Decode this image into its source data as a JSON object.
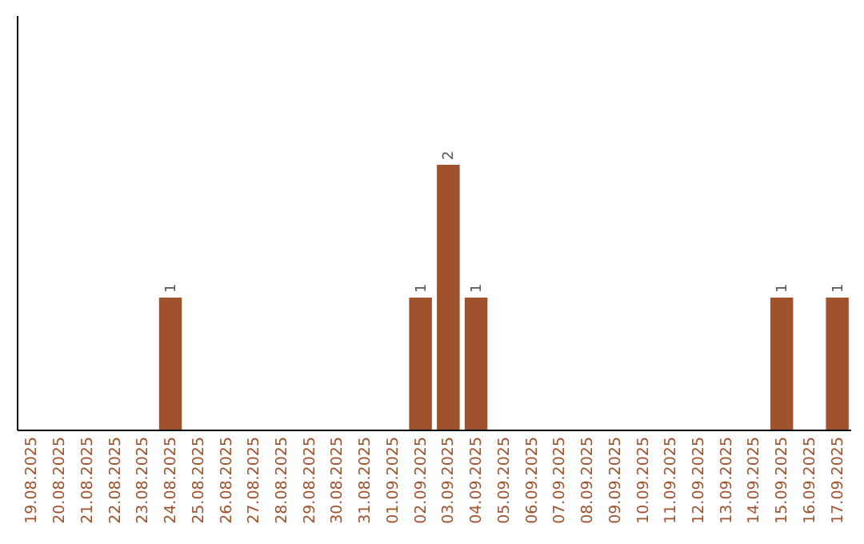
{
  "chart_data": {
    "type": "bar",
    "categories": [
      "19.08.2025",
      "20.08.2025",
      "21.08.2025",
      "22.08.2025",
      "23.08.2025",
      "24.08.2025",
      "25.08.2025",
      "26.08.2025",
      "27.08.2025",
      "28.08.2025",
      "29.08.2025",
      "30.08.2025",
      "31.08.2025",
      "01.09.2025",
      "02.09.2025",
      "03.09.2025",
      "04.09.2025",
      "05.09.2025",
      "06.09.2025",
      "07.09.2025",
      "08.09.2025",
      "09.09.2025",
      "10.09.2025",
      "11.09.2025",
      "12.09.2025",
      "13.09.2025",
      "14.09.2025",
      "15.09.2025",
      "16.09.2025",
      "17.09.2025"
    ],
    "values": [
      0,
      0,
      0,
      0,
      0,
      1,
      0,
      0,
      0,
      0,
      0,
      0,
      0,
      0,
      1,
      2,
      1,
      0,
      0,
      0,
      0,
      0,
      0,
      0,
      0,
      0,
      0,
      1,
      0,
      1
    ],
    "value_labels": [
      null,
      null,
      null,
      null,
      null,
      "1",
      null,
      null,
      null,
      null,
      null,
      null,
      null,
      null,
      "1",
      "2",
      "1",
      null,
      null,
      null,
      null,
      null,
      null,
      null,
      null,
      null,
      null,
      "1",
      null,
      "1"
    ],
    "color": "#a0522d"
  }
}
